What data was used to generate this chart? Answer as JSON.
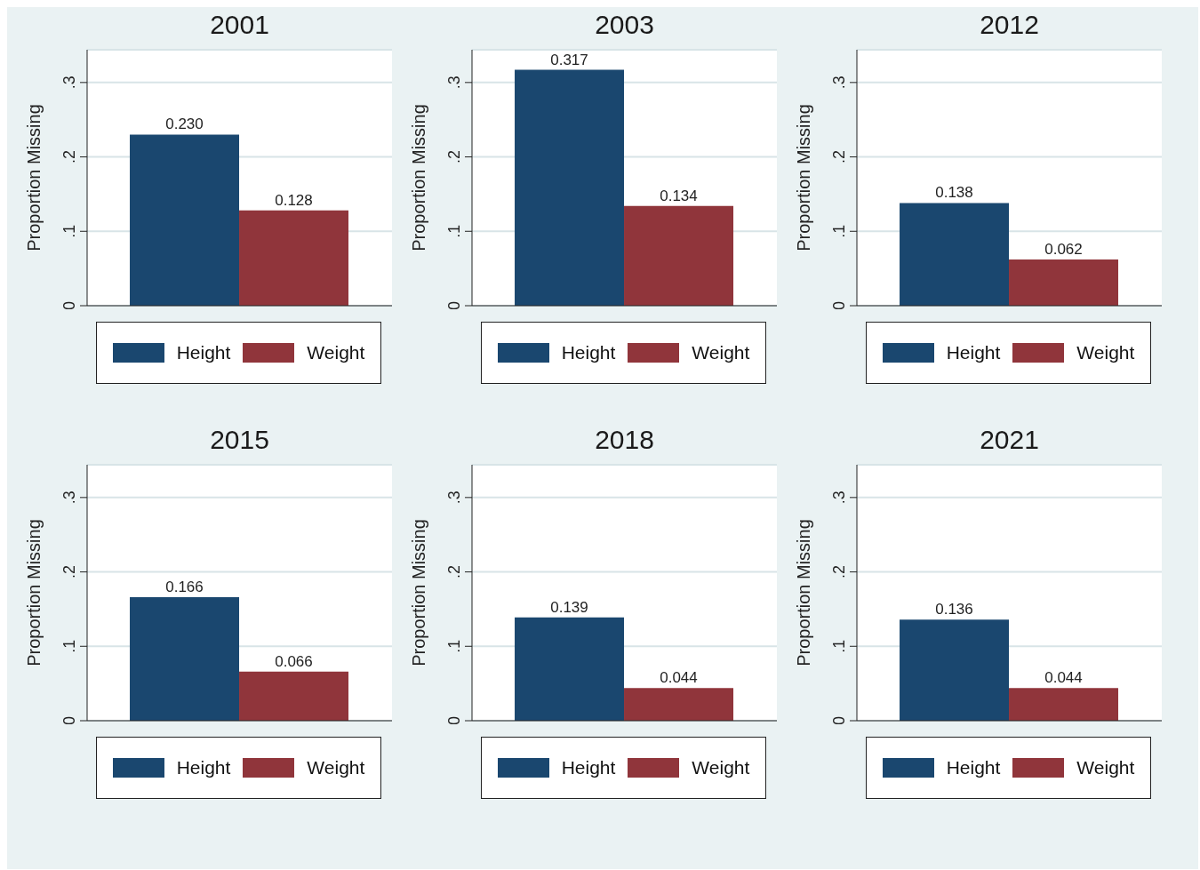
{
  "chart_data": [
    {
      "type": "bar",
      "title": "2001",
      "categories": [
        null
      ],
      "ylabel": "Proportion Missing",
      "ylim": [
        0,
        0.344
      ],
      "yticks": [
        {
          "value": 0,
          "label": "0"
        },
        {
          "value": 0.1,
          "label": ".1"
        },
        {
          "value": 0.2,
          "label": ".2"
        },
        {
          "value": 0.3,
          "label": ".3"
        }
      ],
      "grid": "y",
      "legend": "bottom",
      "series": [
        {
          "name": "Height",
          "color": "#1a476f",
          "values": [
            0.23
          ],
          "value_labels": [
            "0.230"
          ]
        },
        {
          "name": "Weight",
          "color": "#90353b",
          "values": [
            0.128
          ],
          "value_labels": [
            "0.128"
          ]
        }
      ]
    },
    {
      "type": "bar",
      "title": "2003",
      "categories": [
        null
      ],
      "ylabel": "Proportion Missing",
      "ylim": [
        0,
        0.344
      ],
      "yticks": [
        {
          "value": 0,
          "label": "0"
        },
        {
          "value": 0.1,
          "label": ".1"
        },
        {
          "value": 0.2,
          "label": ".2"
        },
        {
          "value": 0.3,
          "label": ".3"
        }
      ],
      "grid": "y",
      "legend": "bottom",
      "series": [
        {
          "name": "Height",
          "color": "#1a476f",
          "values": [
            0.317
          ],
          "value_labels": [
            "0.317"
          ]
        },
        {
          "name": "Weight",
          "color": "#90353b",
          "values": [
            0.134
          ],
          "value_labels": [
            "0.134"
          ]
        }
      ]
    },
    {
      "type": "bar",
      "title": "2012",
      "categories": [
        null
      ],
      "ylabel": "Proportion Missing",
      "ylim": [
        0,
        0.344
      ],
      "yticks": [
        {
          "value": 0,
          "label": "0"
        },
        {
          "value": 0.1,
          "label": ".1"
        },
        {
          "value": 0.2,
          "label": ".2"
        },
        {
          "value": 0.3,
          "label": ".3"
        }
      ],
      "grid": "y",
      "legend": "bottom",
      "series": [
        {
          "name": "Height",
          "color": "#1a476f",
          "values": [
            0.138
          ],
          "value_labels": [
            "0.138"
          ]
        },
        {
          "name": "Weight",
          "color": "#90353b",
          "values": [
            0.062
          ],
          "value_labels": [
            "0.062"
          ]
        }
      ]
    },
    {
      "type": "bar",
      "title": "2015",
      "categories": [
        null
      ],
      "ylabel": "Proportion Missing",
      "ylim": [
        0,
        0.344
      ],
      "yticks": [
        {
          "value": 0,
          "label": "0"
        },
        {
          "value": 0.1,
          "label": ".1"
        },
        {
          "value": 0.2,
          "label": ".2"
        },
        {
          "value": 0.3,
          "label": ".3"
        }
      ],
      "grid": "y",
      "legend": "bottom",
      "series": [
        {
          "name": "Height",
          "color": "#1a476f",
          "values": [
            0.166
          ],
          "value_labels": [
            "0.166"
          ]
        },
        {
          "name": "Weight",
          "color": "#90353b",
          "values": [
            0.066
          ],
          "value_labels": [
            "0.066"
          ]
        }
      ]
    },
    {
      "type": "bar",
      "title": "2018",
      "categories": [
        null
      ],
      "ylabel": "Proportion Missing",
      "ylim": [
        0,
        0.344
      ],
      "yticks": [
        {
          "value": 0,
          "label": "0"
        },
        {
          "value": 0.1,
          "label": ".1"
        },
        {
          "value": 0.2,
          "label": ".2"
        },
        {
          "value": 0.3,
          "label": ".3"
        }
      ],
      "grid": "y",
      "legend": "bottom",
      "series": [
        {
          "name": "Height",
          "color": "#1a476f",
          "values": [
            0.139
          ],
          "value_labels": [
            "0.139"
          ]
        },
        {
          "name": "Weight",
          "color": "#90353b",
          "values": [
            0.044
          ],
          "value_labels": [
            "0.044"
          ]
        }
      ]
    },
    {
      "type": "bar",
      "title": "2021",
      "categories": [
        null
      ],
      "ylabel": "Proportion Missing",
      "ylim": [
        0,
        0.344
      ],
      "yticks": [
        {
          "value": 0,
          "label": "0"
        },
        {
          "value": 0.1,
          "label": ".1"
        },
        {
          "value": 0.2,
          "label": ".2"
        },
        {
          "value": 0.3,
          "label": ".3"
        }
      ],
      "grid": "y",
      "legend": "bottom",
      "series": [
        {
          "name": "Height",
          "color": "#1a476f",
          "values": [
            0.136
          ],
          "value_labels": [
            "0.136"
          ]
        },
        {
          "name": "Weight",
          "color": "#90353b",
          "values": [
            0.044
          ],
          "value_labels": [
            "0.044"
          ]
        }
      ]
    }
  ]
}
